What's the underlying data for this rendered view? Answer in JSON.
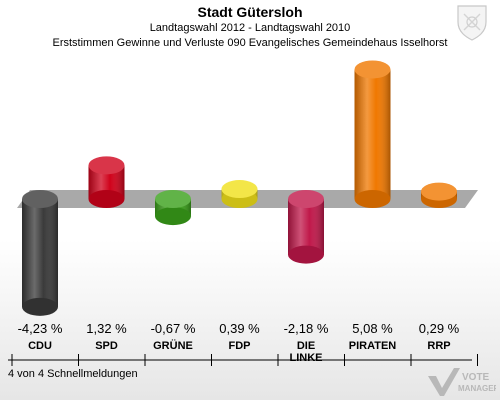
{
  "header": {
    "title": "Stadt Gütersloh",
    "subtitle": "Landtagswahl 2012 - Landtagswahl 2010",
    "description": "Erststimmen Gewinne und Verluste 090 Evangelisches Gemeindehaus Isselhorst"
  },
  "footer": {
    "page_info": "4 von 4 Schnellmeldungen"
  },
  "logo": {
    "line1": "VOTE",
    "line2": "MANAGER"
  },
  "chart_data": {
    "type": "bar",
    "categories": [
      "CDU",
      "SPD",
      "GRÜNE",
      "FDP",
      "DIE LINKE",
      "PIRATEN",
      "RRP"
    ],
    "category_lines": [
      [
        "CDU"
      ],
      [
        "SPD"
      ],
      [
        "GRÜNE"
      ],
      [
        "FDP"
      ],
      [
        "DIE",
        "LINKE"
      ],
      [
        "PIRATEN"
      ],
      [
        "RRP"
      ]
    ],
    "values": [
      -4.23,
      1.32,
      -0.67,
      0.39,
      -2.18,
      5.08,
      0.29
    ],
    "value_labels": [
      "-4,23 %",
      "1,32 %",
      "-0,67 %",
      "0,39 %",
      "-2,18 %",
      "5,08 %",
      "0,29 %"
    ],
    "colors": [
      "#3a3a3a",
      "#d0021b",
      "#3aa01a",
      "#f0e01a",
      "#c0184a",
      "#f07800",
      "#f07800"
    ],
    "unit": "%",
    "grid": false
  }
}
